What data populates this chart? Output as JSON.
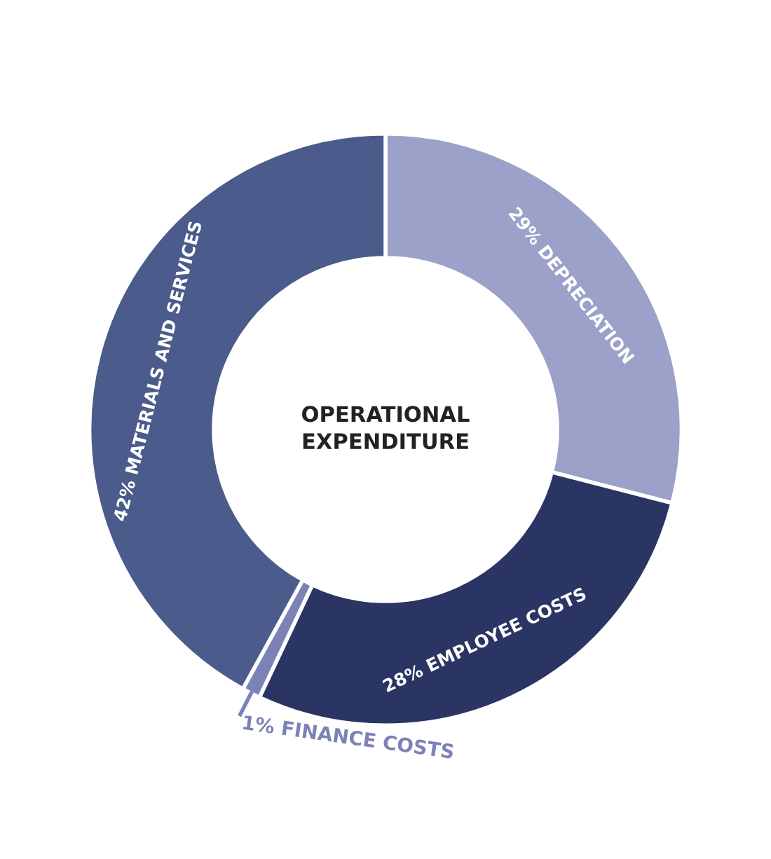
{
  "chart_data": {
    "type": "donut",
    "title": "OPERATIONAL\nEXPENDITURE",
    "categories": [
      "DEPRECIATION",
      "EMPLOYEE COSTS",
      "FINANCE COSTS",
      "MATERIALS AND SERVICES"
    ],
    "values": [
      29,
      28,
      1,
      42
    ],
    "value_labels": [
      "29%",
      "28%",
      "1%",
      "42%"
    ],
    "colors": [
      "#9ba1c8",
      "#2b3563",
      "#7b82b6",
      "#4b5b8b"
    ],
    "legend": false
  }
}
